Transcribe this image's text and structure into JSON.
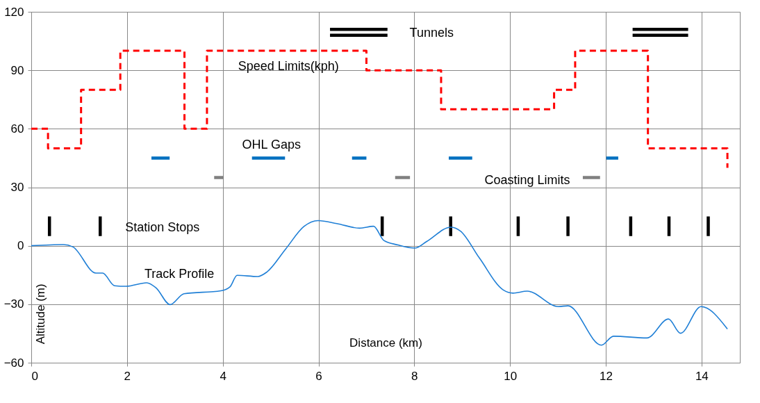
{
  "chart_data": {
    "type": "line",
    "xlabel": "Distance (km)",
    "ylabel": "Altitude (m)",
    "xlim": [
      0,
      14.8
    ],
    "xticks": [
      0,
      2,
      4,
      6,
      8,
      10,
      12,
      14
    ],
    "ylim": [
      -60,
      120
    ],
    "yticks": [
      -60,
      -30,
      0,
      30,
      60,
      90,
      120
    ],
    "grid": true,
    "series": [
      {
        "type": "step",
        "color": "#ff0000",
        "line_style": "dashed",
        "x": [
          0,
          0.35,
          1.04,
          1.86,
          3.2,
          3.67,
          7.0,
          8.56,
          10.92,
          11.36,
          12.88,
          14.54
        ],
        "values": [
          60,
          50,
          80,
          100,
          60,
          100,
          90,
          70,
          80,
          100,
          50,
          40
        ]
      },
      {
        "color": "#0070c0",
        "x": [
          2.51,
          2.89,
          null,
          4.61,
          5.3,
          null,
          6.7,
          7.0,
          null,
          8.72,
          9.21,
          null,
          12.01,
          12.26
        ],
        "values": [
          45,
          45,
          null,
          45,
          45,
          null,
          45,
          45,
          null,
          45,
          45,
          null,
          45,
          45
        ]
      },
      {
        "color": "#808080",
        "x": [
          3.82,
          4.02,
          null,
          7.6,
          7.91,
          null,
          11.52,
          11.88
        ],
        "values": [
          35,
          35,
          null,
          35,
          35,
          null,
          35,
          35
        ]
      },
      {
        "color": "#000000",
        "x": [
          6.24,
          7.44,
          null,
          12.56,
          13.72
        ],
        "values": [
          111,
          111,
          null,
          111,
          111
        ]
      },
      {
        "color": "#000000",
        "x": [
          6.24,
          7.44,
          null,
          12.56,
          13.72
        ],
        "values": [
          108,
          108,
          null,
          108,
          108
        ]
      },
      {
        "color": "#000000",
        "x": [
          0.38,
          0.38,
          null,
          1.44,
          1.44,
          null,
          7.33,
          7.33,
          null,
          8.76,
          8.76,
          null,
          10.17,
          10.17,
          null,
          11.21,
          11.21,
          null,
          12.52,
          12.52,
          null,
          13.32,
          13.32,
          null,
          14.14,
          14.14
        ],
        "values": [
          5,
          15,
          null,
          5,
          15,
          null,
          5,
          15,
          null,
          5,
          15,
          null,
          5,
          15,
          null,
          5,
          15,
          null,
          5,
          15,
          null,
          5,
          15,
          null,
          5,
          15
        ]
      },
      {
        "color": "#1f7fd6",
        "x": [
          0,
          0.67,
          0.87,
          1.35,
          1.49,
          1.74,
          1.98,
          2.41,
          2.61,
          2.9,
          3.19,
          3.96,
          4.15,
          4.3,
          4.73,
          4.92,
          5.31,
          5.7,
          5.99,
          6.38,
          6.86,
          7.15,
          7.36,
          7.66,
          8.01,
          8.26,
          8.76,
          8.96,
          9.36,
          9.86,
          10.06,
          10.36,
          11.01,
          11.21,
          11.91,
          12.16,
          12.86,
          13.31,
          13.56,
          13.99,
          14.54
        ],
        "values": [
          0,
          0.6,
          -0.6,
          -14,
          -14,
          -20.5,
          -20.8,
          -19,
          -21.7,
          -30.2,
          -24.6,
          -23.1,
          -21.1,
          -15.2,
          -15.8,
          -13.5,
          -1.8,
          10,
          12.9,
          11.4,
          9,
          10,
          2.8,
          0.4,
          -1.2,
          2.2,
          9.5,
          7.6,
          -6.3,
          -22.7,
          -24.3,
          -23.3,
          -31.2,
          -30.8,
          -51,
          -46.4,
          -47.3,
          -37.6,
          -44.9,
          -31.2,
          -42.7
        ]
      }
    ],
    "annotations": [
      "Speed Limits(kph)",
      "Tunnels",
      "OHL Gaps",
      "Coasting Limits",
      "Station Stops",
      "Track Profile"
    ]
  }
}
